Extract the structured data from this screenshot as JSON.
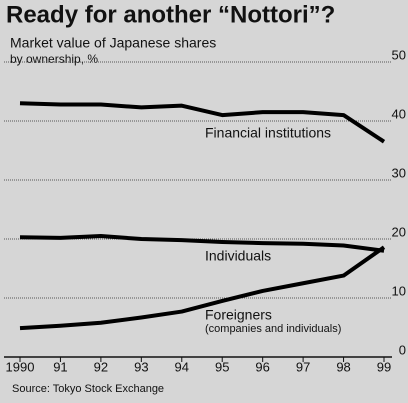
{
  "chart_data": {
    "type": "line",
    "title": "Ready for another “Nottori”?",
    "subtitle": "Market value of Japanese shares",
    "y_label": "by ownership, %",
    "source": "Source: Tokyo Stock Exchange",
    "categories": [
      "1990",
      "91",
      "92",
      "93",
      "94",
      "95",
      "96",
      "97",
      "98",
      "99"
    ],
    "series": [
      {
        "name": "Financial institutions",
        "color": "#000000",
        "values": [
          43.0,
          42.8,
          42.8,
          42.3,
          42.6,
          41.0,
          41.5,
          41.5,
          41.0,
          36.5
        ]
      },
      {
        "name": "Individuals",
        "color": "#000000",
        "values": [
          20.3,
          20.2,
          20.5,
          20.0,
          19.8,
          19.5,
          19.3,
          19.2,
          18.9,
          18.0
        ]
      },
      {
        "name": "Foreigners",
        "color": "#000000",
        "values": [
          4.9,
          5.3,
          5.8,
          6.7,
          7.7,
          9.5,
          11.2,
          12.5,
          13.8,
          18.6
        ]
      }
    ],
    "annotations": [
      "(companies and individuals)"
    ],
    "ylim": [
      0,
      50
    ],
    "yticks": [
      0,
      10,
      20,
      30,
      40,
      50
    ],
    "grid": true
  }
}
